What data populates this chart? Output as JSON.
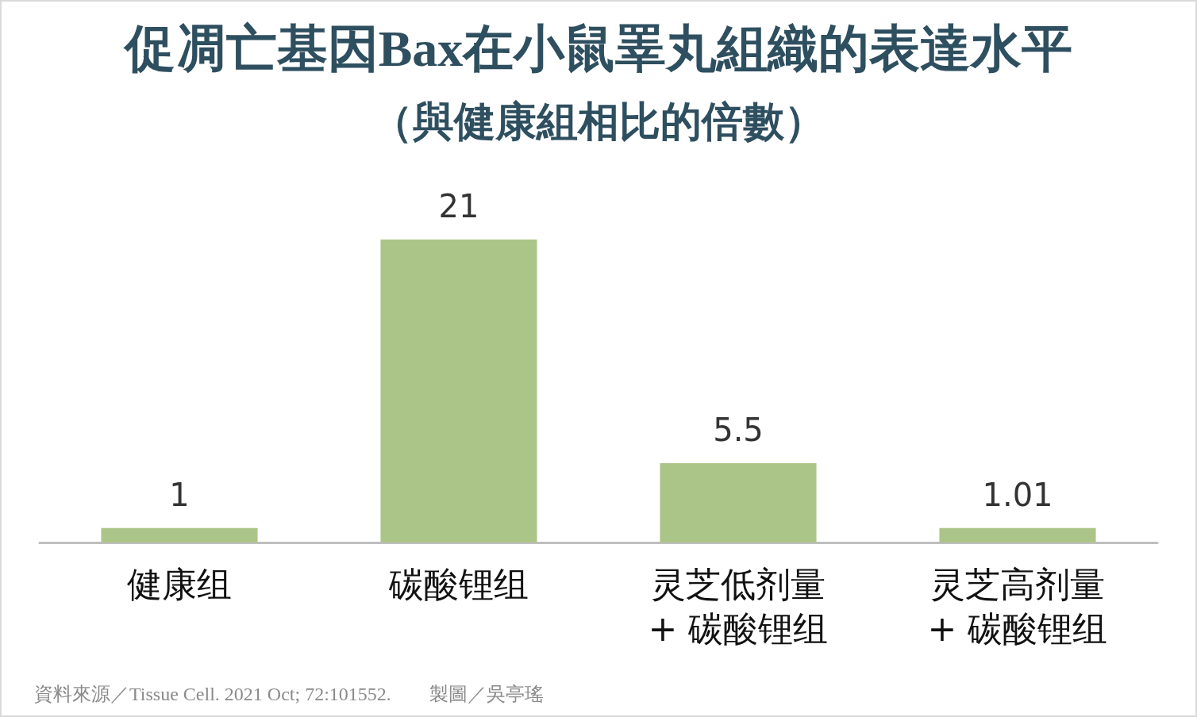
{
  "chart_data": {
    "type": "bar",
    "title": "促凋亡基因Bax在小鼠睪丸組織的表達水平",
    "subtitle": "（與健康組相比的倍數）",
    "categories": [
      "健康组",
      "碳酸锂组",
      "灵芝低剂量\n+ 碳酸锂组",
      "灵芝高剂量\n+ 碳酸锂组"
    ],
    "values": [
      1,
      21,
      5.5,
      1.01
    ],
    "color": "#abc588",
    "data_labels": true,
    "grid": false,
    "tick_labels": "x",
    "annotations": [
      "資料來源／Tissue Cell. 2021 Oct; 72:101552.　　製圖／吳亭瑤"
    ]
  }
}
